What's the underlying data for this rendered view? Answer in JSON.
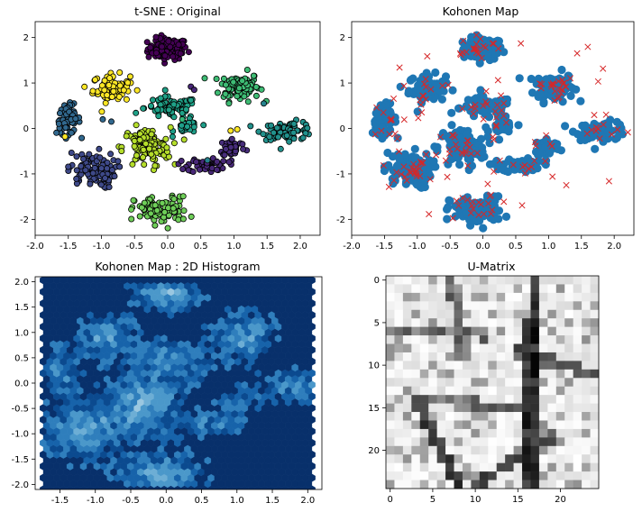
{
  "chart_data": [
    {
      "type": "scatter",
      "title": "t-SNE : Original",
      "xlim": [
        -2.0,
        2.3
      ],
      "ylim": [
        -2.35,
        2.35
      ],
      "xticks": [
        "-2.0",
        "-1.5",
        "-1.0",
        "-0.5",
        "0.0",
        "0.5",
        "1.0",
        "1.5",
        "2.0"
      ],
      "yticks": [
        "2",
        "1",
        "0",
        "-1",
        "-2"
      ],
      "colormap": "viridis",
      "edgecolor": "#000000",
      "clusters": [
        {
          "cx": 0.0,
          "cy": 1.75,
          "sx": 0.15,
          "sy": 0.12,
          "n": 110,
          "color": "#440154"
        },
        {
          "cx": 1.08,
          "cy": 0.92,
          "sx": 0.15,
          "sy": 0.16,
          "n": 90,
          "color": "#3ebc74"
        },
        {
          "cx": -0.85,
          "cy": 0.88,
          "sx": 0.14,
          "sy": 0.15,
          "n": 80,
          "color": "#fde725"
        },
        {
          "cx": -1.5,
          "cy": 0.2,
          "sx": 0.09,
          "sy": 0.16,
          "n": 70,
          "color": "#31688e"
        },
        {
          "cx": 0.05,
          "cy": 0.45,
          "sx": 0.2,
          "sy": 0.12,
          "n": 80,
          "color": "#1fa187"
        },
        {
          "cx": 0.3,
          "cy": 0.02,
          "sx": 0.1,
          "sy": 0.08,
          "n": 25,
          "color": "#1f9e89"
        },
        {
          "cx": 1.82,
          "cy": -0.05,
          "sx": 0.2,
          "sy": 0.1,
          "n": 70,
          "color": "#21918c"
        },
        {
          "cx": -0.32,
          "cy": -0.42,
          "sx": 0.18,
          "sy": 0.22,
          "n": 110,
          "color": "#b5de2b"
        },
        {
          "cx": 0.98,
          "cy": -0.42,
          "sx": 0.1,
          "sy": 0.1,
          "n": 40,
          "color": "#472d7b"
        },
        {
          "cx": 0.6,
          "cy": -0.8,
          "sx": 0.15,
          "sy": 0.08,
          "n": 50,
          "color": "#482878"
        },
        {
          "cx": -1.15,
          "cy": -0.92,
          "sx": 0.18,
          "sy": 0.2,
          "n": 100,
          "color": "#3e4989"
        },
        {
          "cx": -0.1,
          "cy": -1.8,
          "sx": 0.2,
          "sy": 0.15,
          "n": 100,
          "color": "#6ece58"
        }
      ],
      "singles": [
        {
          "x": 0.35,
          "y": 0.92,
          "color": "#482878"
        },
        {
          "x": 0.4,
          "y": 0.85,
          "color": "#482878"
        },
        {
          "x": -0.98,
          "y": 0.2,
          "color": "#31688e"
        },
        {
          "x": -0.85,
          "y": 0.15,
          "color": "#31688e"
        },
        {
          "x": 0.95,
          "y": -0.05,
          "color": "#fde725"
        },
        {
          "x": 1.05,
          "y": -0.02,
          "color": "#fde725"
        },
        {
          "x": 0.6,
          "y": -0.7,
          "color": "#26828e"
        },
        {
          "x": -1.55,
          "y": -0.18,
          "color": "#fde725"
        },
        {
          "x": 1.45,
          "y": 0.55,
          "color": "#26828e"
        },
        {
          "x": 0.22,
          "y": 0.2,
          "color": "#35b779"
        }
      ]
    },
    {
      "type": "scatter",
      "title": "Kohonen Map",
      "xlim": [
        -2.0,
        2.3
      ],
      "ylim": [
        -2.35,
        2.35
      ],
      "xticks": [
        "-2.0",
        "-1.5",
        "-1.0",
        "-0.5",
        "0.0",
        "0.5",
        "1.0",
        "1.5",
        "2.0"
      ],
      "yticks": [
        "2",
        "1",
        "0",
        "-1",
        "-2"
      ],
      "series": [
        {
          "marker": "o",
          "color": "#1f77b4"
        },
        {
          "marker": "x",
          "color": "#d62728",
          "count": 625
        }
      ]
    },
    {
      "type": "heatmap",
      "title": "Kohonen Map : 2D Histogram",
      "xlim": [
        -1.85,
        2.2
      ],
      "ylim": [
        -2.1,
        2.1
      ],
      "xticks": [
        "-1.5",
        "-1.0",
        "-0.5",
        "0.0",
        "0.5",
        "1.0",
        "1.5",
        "2.0"
      ],
      "yticks": [
        "2.0",
        "1.5",
        "1.0",
        "0.5",
        "0.0",
        "-0.5",
        "-1.0",
        "-1.5",
        "-2.0"
      ],
      "colormap": "Blues",
      "background": "#08306b"
    },
    {
      "type": "heatmap",
      "title": "U-Matrix",
      "shape": [
        25,
        25
      ],
      "xticks": [
        "0",
        "5",
        "10",
        "15",
        "20"
      ],
      "yticks": [
        "0",
        "5",
        "10",
        "15",
        "20"
      ],
      "colormap": "gray"
    }
  ]
}
